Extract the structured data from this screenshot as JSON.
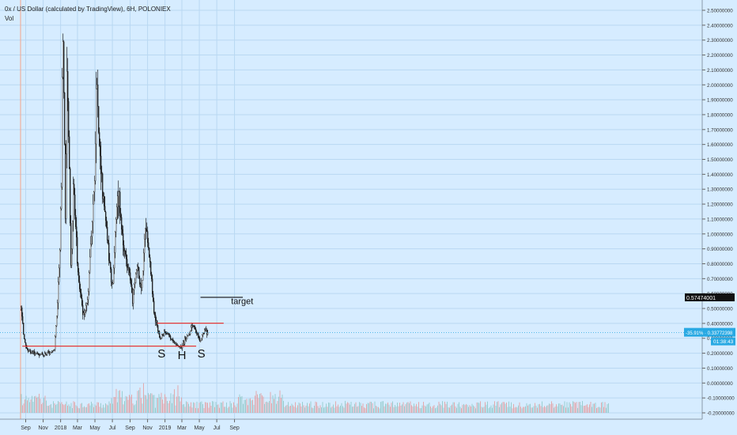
{
  "header": {
    "title": "0x / US Dollar (calculated by TradingView), 6H, POLONIEX",
    "volume_label": "Vol"
  },
  "chart_data": {
    "type": "candlestick",
    "title": "0x / US Dollar (calculated by TradingView), 6H, POLONIEX",
    "x_labels": [
      "Sep",
      "Nov",
      "2018",
      "Mar",
      "May",
      "Jul",
      "Sep",
      "Nov",
      "2019",
      "Mar",
      "May",
      "Jul",
      "Sep"
    ],
    "y_ticks": [
      "2.50000000",
      "2.40000000",
      "2.30000000",
      "2.20000000",
      "2.10000000",
      "2.00000000",
      "1.90000000",
      "1.80000000",
      "1.70000000",
      "1.60000000",
      "1.50000000",
      "1.40000000",
      "1.30000000",
      "1.20000000",
      "1.10000000",
      "1.00000000",
      "0.90000000",
      "0.80000000",
      "0.70000000",
      "0.60000000",
      "0.50000000",
      "0.40000000",
      "0.30000000",
      "0.20000000",
      "0.10000000",
      "0.00000000",
      "-0.10000000",
      "-0.20000000"
    ],
    "ylim": [
      -0.2,
      2.5
    ],
    "price_path": [
      {
        "x": "2017-08-16",
        "y": 0.5
      },
      {
        "x": "2017-08-25",
        "y": 0.32
      },
      {
        "x": "2017-09-05",
        "y": 0.22
      },
      {
        "x": "2017-10-01",
        "y": 0.2
      },
      {
        "x": "2017-11-01",
        "y": 0.19
      },
      {
        "x": "2017-12-10",
        "y": 0.22
      },
      {
        "x": "2017-12-20",
        "y": 0.5
      },
      {
        "x": "2017-12-28",
        "y": 0.8
      },
      {
        "x": "2018-01-05",
        "y": 1.4
      },
      {
        "x": "2018-01-08",
        "y": 2.45
      },
      {
        "x": "2018-01-13",
        "y": 1.9
      },
      {
        "x": "2018-01-18",
        "y": 1.1
      },
      {
        "x": "2018-01-23",
        "y": 2.05
      },
      {
        "x": "2018-02-02",
        "y": 1.3
      },
      {
        "x": "2018-02-06",
        "y": 0.75
      },
      {
        "x": "2018-02-15",
        "y": 1.3
      },
      {
        "x": "2018-03-01",
        "y": 0.8
      },
      {
        "x": "2018-03-20",
        "y": 0.45
      },
      {
        "x": "2018-04-05",
        "y": 0.55
      },
      {
        "x": "2018-04-20",
        "y": 1.0
      },
      {
        "x": "2018-05-01",
        "y": 1.4
      },
      {
        "x": "2018-05-06",
        "y": 2.03
      },
      {
        "x": "2018-05-15",
        "y": 1.6
      },
      {
        "x": "2018-06-01",
        "y": 1.2
      },
      {
        "x": "2018-06-15",
        "y": 0.95
      },
      {
        "x": "2018-07-01",
        "y": 0.62
      },
      {
        "x": "2018-07-20",
        "y": 1.3
      },
      {
        "x": "2018-08-10",
        "y": 0.9
      },
      {
        "x": "2018-09-01",
        "y": 0.7
      },
      {
        "x": "2018-09-10",
        "y": 0.55
      },
      {
        "x": "2018-09-25",
        "y": 0.82
      },
      {
        "x": "2018-10-10",
        "y": 0.6
      },
      {
        "x": "2018-10-25",
        "y": 1.05
      },
      {
        "x": "2018-11-10",
        "y": 0.8
      },
      {
        "x": "2018-11-25",
        "y": 0.45
      },
      {
        "x": "2018-12-15",
        "y": 0.3
      },
      {
        "x": "2019-01-01",
        "y": 0.35
      },
      {
        "x": "2019-01-25",
        "y": 0.3
      },
      {
        "x": "2019-02-10",
        "y": 0.25
      },
      {
        "x": "2019-02-25",
        "y": 0.24
      },
      {
        "x": "2019-03-10",
        "y": 0.28
      },
      {
        "x": "2019-03-25",
        "y": 0.33
      },
      {
        "x": "2019-04-10",
        "y": 0.38
      },
      {
        "x": "2019-04-25",
        "y": 0.32
      },
      {
        "x": "2019-05-05",
        "y": 0.28
      },
      {
        "x": "2019-05-20",
        "y": 0.35
      },
      {
        "x": "2019-06-01",
        "y": 0.3377
      }
    ],
    "horizontal_lines": [
      {
        "price": 0.2477,
        "color": "#e53935",
        "from": "2017-08-20",
        "to": "2019-04-20"
      },
      {
        "price": 0.4015,
        "color": "#e53935",
        "from": "2018-12-05",
        "to": "2019-07-25"
      },
      {
        "price": 0.5747,
        "color": "#111111",
        "from": "2019-05-05",
        "to": "2019-09-30"
      }
    ],
    "annotations": [
      {
        "text": "S",
        "x": "2018-12-20",
        "y": 0.17
      },
      {
        "text": "H",
        "x": "2019-03-01",
        "y": 0.16
      },
      {
        "text": "S",
        "x": "2019-05-08",
        "y": 0.17
      },
      {
        "text": "target",
        "x": "2019-08-20",
        "y": 0.53
      }
    ],
    "price_labels": {
      "target_value": "0.57474001",
      "last_change": "-35.91%",
      "last_price": "0.33772398",
      "countdown": "01:38:43"
    },
    "colors": {
      "background": "#d6ecff",
      "candles": "#1a1a1a",
      "accent_line": "#e53935",
      "price_badge": "#29a9e3",
      "volume": "#e79999"
    },
    "grid": true
  }
}
